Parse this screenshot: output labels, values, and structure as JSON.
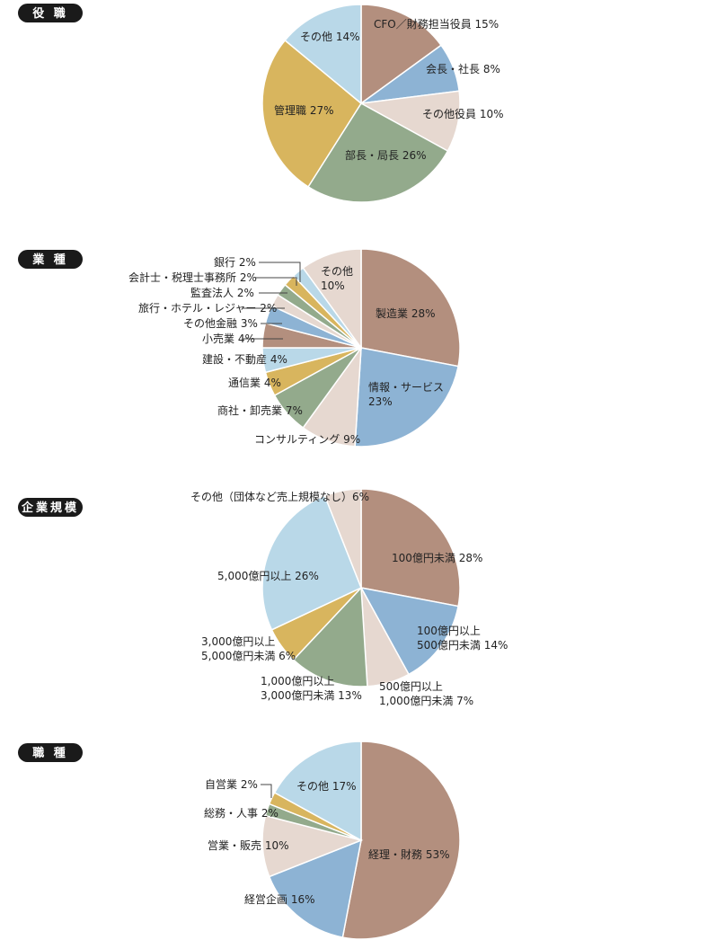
{
  "colors": {
    "brown": "#B38F7E",
    "blue": "#8DB3D4",
    "pink": "#E6D8D0",
    "green": "#93AA8C",
    "gold": "#D8B55E",
    "lightblue": "#B9D8E8"
  },
  "chart_data": [
    {
      "type": "pie",
      "title": "役 職",
      "slices": [
        {
          "name": "CFO／財務担当役員 15%",
          "value": 15,
          "color": "#B38F7E"
        },
        {
          "name": "会長・社長 8%",
          "value": 8,
          "color": "#8DB3D4"
        },
        {
          "name": "その他役員 10%",
          "value": 10,
          "color": "#E6D8D0"
        },
        {
          "name": "部長・局長 26%",
          "value": 26,
          "color": "#93AA8C"
        },
        {
          "name": "管理職 27%",
          "value": 27,
          "color": "#D8B55E"
        },
        {
          "name": "その他 14%",
          "value": 14,
          "color": "#B9D8E8"
        }
      ]
    },
    {
      "type": "pie",
      "title": "業 種",
      "slices": [
        {
          "name": "製造業 28%",
          "value": 28,
          "color": "#B38F7E"
        },
        {
          "name": "情報・サービス|23%",
          "value": 23,
          "color": "#8DB3D4"
        },
        {
          "name": "コンサルティング 9%",
          "value": 9,
          "color": "#E6D8D0"
        },
        {
          "name": "商社・卸売業 7%",
          "value": 7,
          "color": "#93AA8C"
        },
        {
          "name": "通信業 4%",
          "value": 4,
          "color": "#D8B55E"
        },
        {
          "name": "建設・不動産 4%",
          "value": 4,
          "color": "#B9D8E8"
        },
        {
          "name": "小売業 4%",
          "value": 4,
          "color": "#B38F7E"
        },
        {
          "name": "その他金融 3%",
          "value": 3,
          "color": "#8DB3D4"
        },
        {
          "name": "旅行・ホテル・レジャー 2%",
          "value": 2,
          "color": "#E6D8D0"
        },
        {
          "name": "監査法人 2%",
          "value": 2,
          "color": "#93AA8C"
        },
        {
          "name": "会計士・税理士事務所 2%",
          "value": 2,
          "color": "#D8B55E"
        },
        {
          "name": "銀行 2%",
          "value": 2,
          "color": "#B9D8E8"
        },
        {
          "name": "その他|10%",
          "value": 10,
          "color": "#E6D8D0"
        }
      ]
    },
    {
      "type": "pie",
      "title": "企業規模",
      "slices": [
        {
          "name": "100億円未満 28%",
          "value": 28,
          "color": "#B38F7E"
        },
        {
          "name": "100億円以上|500億円未満 14%",
          "value": 14,
          "color": "#8DB3D4"
        },
        {
          "name": "500億円以上|1,000億円未満 7%",
          "value": 7,
          "color": "#E6D8D0"
        },
        {
          "name": "1,000億円以上|3,000億円未満 13%",
          "value": 13,
          "color": "#93AA8C"
        },
        {
          "name": "3,000億円以上|5,000億円未満 6%",
          "value": 6,
          "color": "#D8B55E"
        },
        {
          "name": "5,000億円以上 26%",
          "value": 26,
          "color": "#B9D8E8"
        },
        {
          "name": "その他（団体など売上規模なし）6%",
          "value": 6,
          "color": "#E6D8D0"
        }
      ]
    },
    {
      "type": "pie",
      "title": "職 種",
      "slices": [
        {
          "name": "経理・財務 53%",
          "value": 53,
          "color": "#B38F7E"
        },
        {
          "name": "経営企画 16%",
          "value": 16,
          "color": "#8DB3D4"
        },
        {
          "name": "営業・販売 10%",
          "value": 10,
          "color": "#E6D8D0"
        },
        {
          "name": "総務・人事 2%",
          "value": 2,
          "color": "#93AA8C"
        },
        {
          "name": "自営業 2%",
          "value": 2,
          "color": "#D8B55E"
        },
        {
          "name": "その他 17%",
          "value": 17,
          "color": "#B9D8E8"
        }
      ]
    }
  ]
}
